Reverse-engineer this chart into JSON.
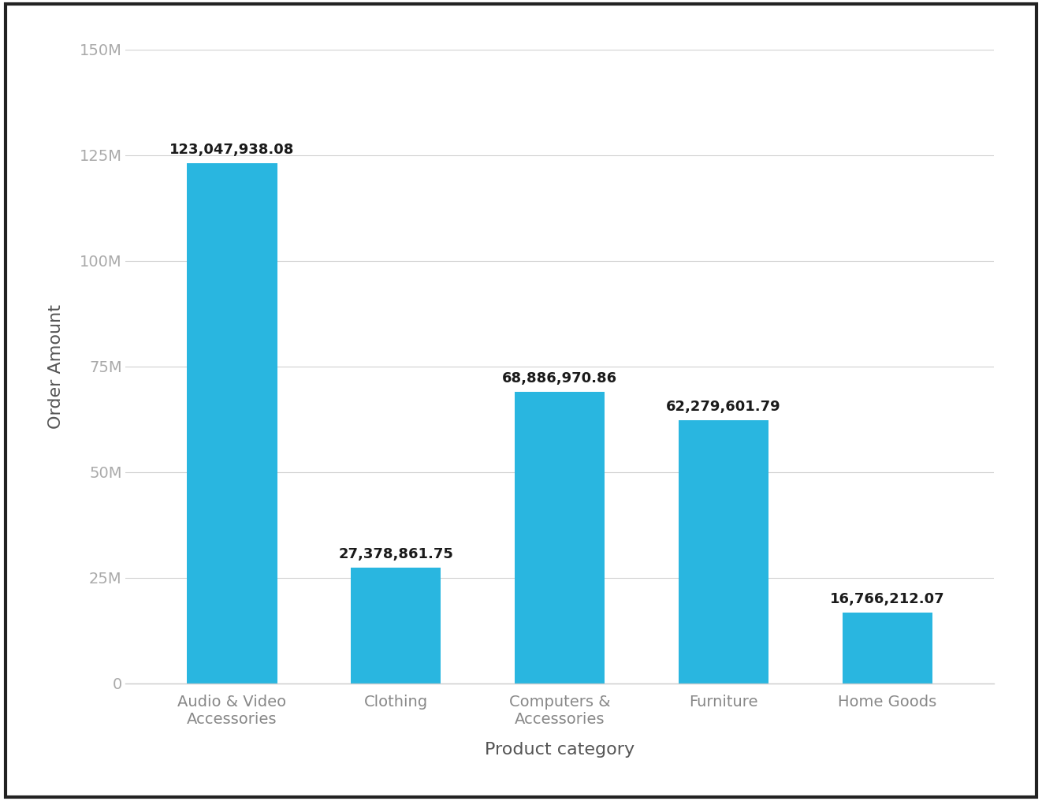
{
  "categories": [
    "Audio & Video\nAccessories",
    "Clothing",
    "Computers &\nAccessories",
    "Furniture",
    "Home Goods"
  ],
  "values": [
    123047938.08,
    27378861.75,
    68886970.86,
    62279601.79,
    16766212.07
  ],
  "labels": [
    "123,047,938.08",
    "27,378,861.75",
    "68,886,970.86",
    "62,279,601.79",
    "16,766,212.07"
  ],
  "bar_color": "#29b6e0",
  "background_color": "#ffffff",
  "plot_bg_color": "#ffffff",
  "border_color": "#222222",
  "xlabel": "Product category",
  "ylabel": "Order Amount",
  "ylim": [
    0,
    150000000
  ],
  "yticks": [
    0,
    25000000,
    50000000,
    75000000,
    100000000,
    125000000,
    150000000
  ],
  "ytick_labels": [
    "0",
    "25M",
    "50M",
    "75M",
    "100M",
    "125M",
    "150M"
  ],
  "grid_color": "#d0d0d0",
  "tick_fontsize": 14,
  "axis_label_fontsize": 16,
  "bar_label_fontsize": 13,
  "bar_width": 0.55
}
